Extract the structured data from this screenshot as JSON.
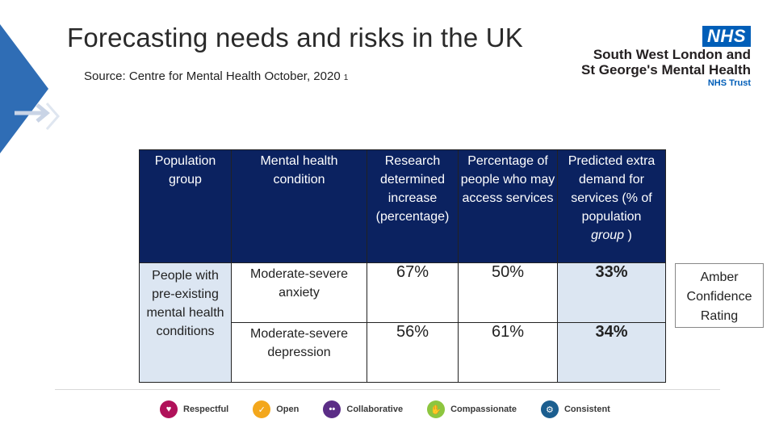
{
  "title": "Forecasting needs and risks in the UK",
  "source": {
    "text": "Source: Centre for Mental Health October, 2020",
    "ref": "1"
  },
  "logo": {
    "badge": "NHS",
    "line1": "South West London and",
    "line2": "St George's Mental Health",
    "line3": "NHS Trust"
  },
  "table": {
    "headers": {
      "group": "Population group",
      "condition": "Mental health condition",
      "increase": "Research determined increase (percentage)",
      "access": "Percentage of people who may access services",
      "predicted_main": "Predicted extra demand for services (% of population",
      "predicted_em": "group",
      "predicted_tail": " )"
    },
    "group_label": "People with pre-existing mental health conditions",
    "rows": [
      {
        "condition": "Moderate-severe anxiety",
        "increase": "67%",
        "access": "50%",
        "predicted": "33%"
      },
      {
        "condition": "Moderate-severe depression",
        "increase": "56%",
        "access": "61%",
        "predicted": "34%"
      }
    ]
  },
  "confidence": "Amber Confidence Rating",
  "values": [
    {
      "label": "Respectful",
      "icon": "respectful-icon",
      "color": "#b0115a"
    },
    {
      "label": "Open",
      "icon": "open-icon",
      "color": "#f3a71c"
    },
    {
      "label": "Collaborative",
      "icon": "collaborative-icon",
      "color": "#5b2d86"
    },
    {
      "label": "Compassionate",
      "icon": "compassionate-icon",
      "color": "#8dc63f"
    },
    {
      "label": "Consistent",
      "icon": "consistent-icon",
      "color": "#1b5e8f"
    }
  ]
}
